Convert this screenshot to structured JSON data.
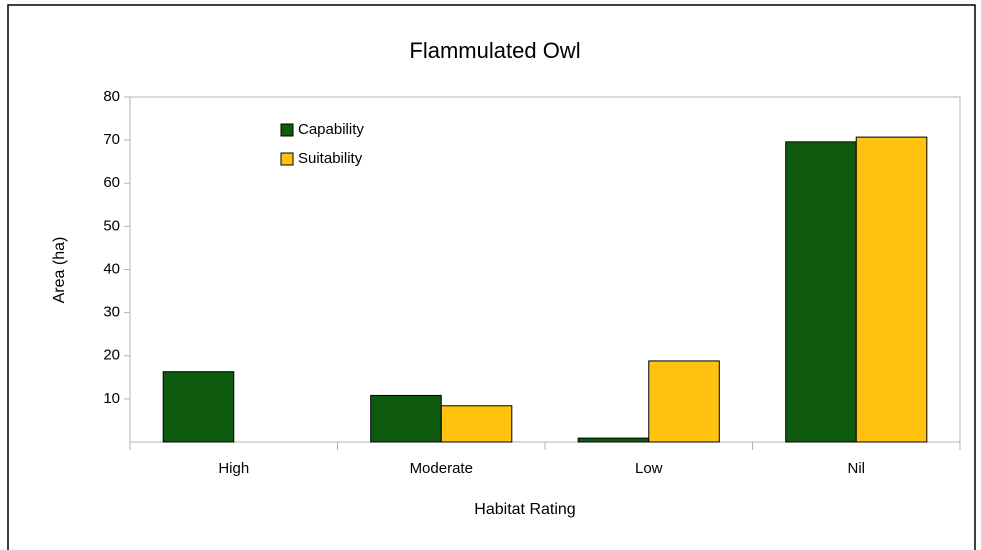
{
  "chart_data": {
    "type": "bar",
    "title": "Flammulated Owl",
    "x_label": "Habitat Rating",
    "y_label": "Area (ha)",
    "categories": [
      "High",
      "Moderate",
      "Low",
      "Nil"
    ],
    "series": [
      {
        "name": "Capability",
        "color": "#0e5a0e",
        "values": [
          16.3,
          10.8,
          0.9,
          69.6
        ]
      },
      {
        "name": "Suitability",
        "color": "#ffc20e",
        "values": [
          0,
          8.4,
          18.8,
          70.7
        ]
      }
    ],
    "ylim": [
      0,
      80
    ],
    "yticks": [
      10,
      20,
      30,
      40,
      50,
      60,
      70,
      80
    ],
    "legend": "top-left",
    "grid": false
  }
}
